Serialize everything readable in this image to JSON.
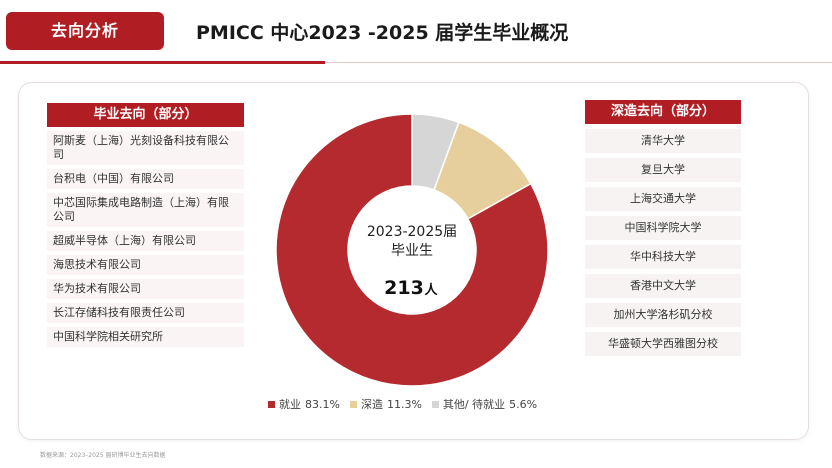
{
  "header": {
    "tag": "去向分析",
    "title": "PMICC 中心2023 -2025 届学生毕业概况"
  },
  "employment": {
    "heading": "毕业去向（部分）",
    "items": [
      "阿斯麦（上海）光刻设备科技有限公司",
      "台积电（中国）有限公司",
      "中芯国际集成电路制造（上海）有限公司",
      "超威半导体（上海）有限公司",
      "海思技术有限公司",
      "华为技术有限公司",
      "长江存储科技有限责任公司",
      "中国科学院相关研究所"
    ]
  },
  "study": {
    "heading": "深造去向（部分）",
    "items": [
      "清华大学",
      "复旦大学",
      "上海交通大学",
      "中国科学院大学",
      "华中科技大学",
      "香港中文大学",
      "加州大学洛杉矶分校",
      "华盛顿大学西雅图分校"
    ]
  },
  "chart_data": {
    "type": "pie",
    "donut": true,
    "center_label_line1": "2023-2025届",
    "center_label_line2": "毕业生",
    "center_value": "213",
    "center_unit": "人",
    "slices": [
      {
        "name": "就业",
        "value": 83.1,
        "label": "83.1%",
        "color": "#b42a2e"
      },
      {
        "name": "深造",
        "value": 11.3,
        "label": "11.3%",
        "color": "#e6cf9d"
      },
      {
        "name": "其他/ 待就业",
        "value": 5.6,
        "label": "5.6%",
        "color": "#d6d6d6"
      }
    ],
    "legend_position": "bottom"
  },
  "footer": {
    "source": "数据来源：2023–2025 届研博毕业生去向数据"
  }
}
